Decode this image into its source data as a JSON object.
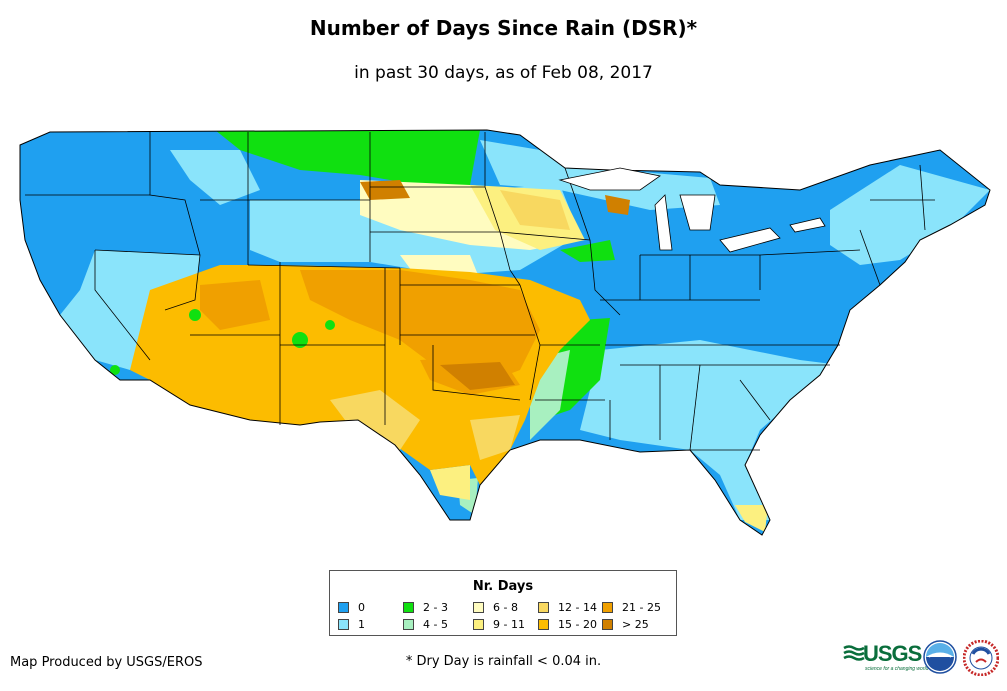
{
  "title": "Number of Days Since Rain (DSR)*",
  "subtitle": "in past 30 days, as of Feb 08, 2017",
  "legend": {
    "title": "Nr. Days",
    "items": [
      {
        "label": "0",
        "color": "#1fa0f0"
      },
      {
        "label": "1",
        "color": "#8ae4fb"
      },
      {
        "label": "2 - 3",
        "color": "#10e010"
      },
      {
        "label": "4 - 5",
        "color": "#a8f0c0"
      },
      {
        "label": "6 - 8",
        "color": "#fffcc0"
      },
      {
        "label": "9 - 11",
        "color": "#fcf080"
      },
      {
        "label": "12 - 14",
        "color": "#f8d860"
      },
      {
        "label": "15 - 20",
        "color": "#fcbc00"
      },
      {
        "label": "21 - 25",
        "color": "#f0a000"
      },
      {
        "label": "> 25",
        "color": "#d08000"
      }
    ]
  },
  "footer": {
    "credit": "Map Produced by USGS/EROS",
    "footnote": "* Dry Day is rainfall < 0.04 in."
  },
  "logos": {
    "usgs_word": "USGS",
    "usgs_tagline": "science for a changing world",
    "noaa_icon": "noaa-logo",
    "nws_icon": "national-weather-service-logo"
  },
  "map": {
    "region": "Contiguous United States",
    "state_border_color": "#000000"
  }
}
